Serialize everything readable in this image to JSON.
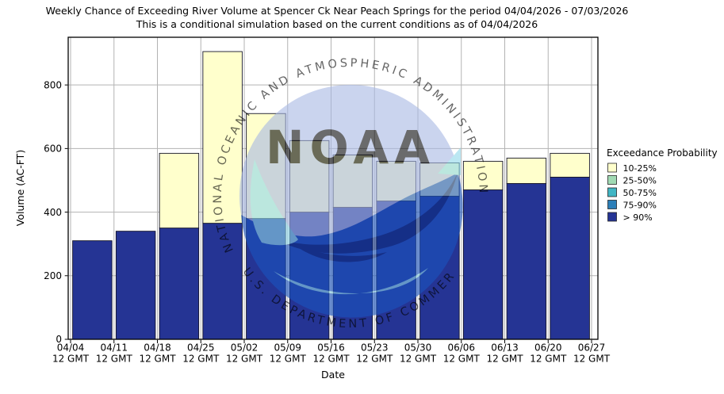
{
  "title": {
    "line1": "Weekly Chance of Exceeding River Volume at Spencer Ck Near Peach Springs for the period 04/04/2026 - 07/03/2026",
    "line2": "This is a conditional simulation based on the current conditions as of 04/04/2026"
  },
  "axes": {
    "xlabel": "Date",
    "ylabel": "Volume (AC-FT)",
    "ylim": [
      0,
      950
    ],
    "yticks": [
      0,
      200,
      400,
      600,
      800
    ],
    "xticks": [
      {
        "date": "04/04",
        "time": "12 GMT"
      },
      {
        "date": "04/11",
        "time": "12 GMT"
      },
      {
        "date": "04/18",
        "time": "12 GMT"
      },
      {
        "date": "04/25",
        "time": "12 GMT"
      },
      {
        "date": "05/02",
        "time": "12 GMT"
      },
      {
        "date": "05/09",
        "time": "12 GMT"
      },
      {
        "date": "05/16",
        "time": "12 GMT"
      },
      {
        "date": "05/23",
        "time": "12 GMT"
      },
      {
        "date": "05/30",
        "time": "12 GMT"
      },
      {
        "date": "06/06",
        "time": "12 GMT"
      },
      {
        "date": "06/13",
        "time": "12 GMT"
      },
      {
        "date": "06/20",
        "time": "12 GMT"
      },
      {
        "date": "06/27",
        "time": "12 GMT"
      }
    ]
  },
  "chart_data": {
    "type": "bar",
    "stacked": true,
    "units": "AC-FT",
    "categories": [
      "04/04",
      "04/11",
      "04/18",
      "04/25",
      "05/02",
      "05/09",
      "05/16",
      "05/23",
      "05/30",
      "06/06",
      "06/13",
      "06/20"
    ],
    "series": [
      {
        "name": "> 90%",
        "color": "#253494",
        "tops_ac_ft": [
          310,
          340,
          350,
          365,
          380,
          400,
          415,
          435,
          450,
          470,
          490,
          510
        ]
      },
      {
        "name": "10-25%",
        "color": "#ffffcc",
        "tops_ac_ft": [
          null,
          null,
          585,
          905,
          710,
          625,
          580,
          560,
          555,
          560,
          570,
          585
        ]
      }
    ],
    "grid": true,
    "legend_position": "right"
  },
  "legend": {
    "title": "Exceedance Probability",
    "items": [
      {
        "label": "10-25%",
        "color": "#ffffcc"
      },
      {
        "label": "25-50%",
        "color": "#a1dab4"
      },
      {
        "label": "50-75%",
        "color": "#41b6c4"
      },
      {
        "label": "75-90%",
        "color": "#2c7fb8"
      },
      {
        "label": "> 90%",
        "color": "#253494"
      }
    ]
  },
  "watermark": {
    "ring_top": "NATIONAL OCEANIC AND ATMOSPHERIC ADMINISTRATION",
    "ring_bottom": "U.S. DEPARTMENT OF COMMERCE",
    "acronym": "NOAA"
  },
  "style_colors": {
    "grid": "#b3b3b3",
    "bar_edge": "#15152a",
    "frame": "#000000"
  }
}
